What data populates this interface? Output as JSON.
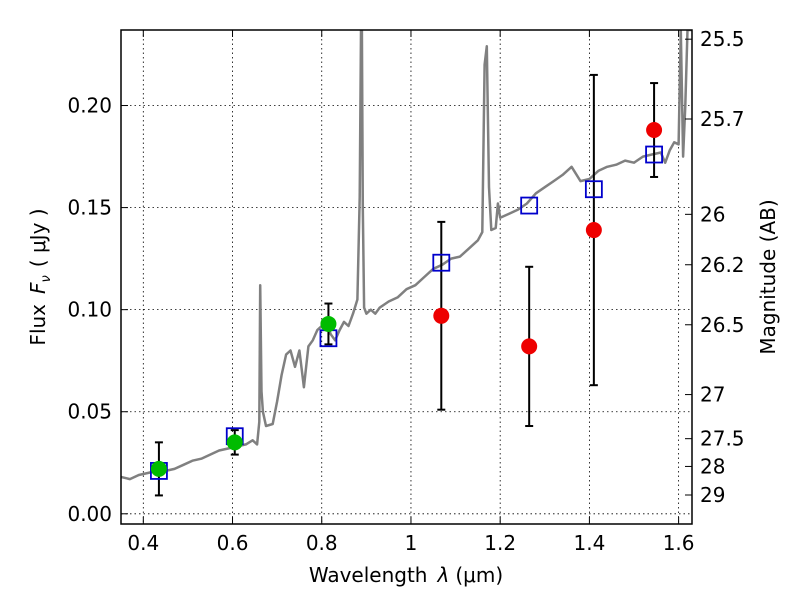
{
  "chart_data": {
    "type": "scatter",
    "xlabel": "Wavelength",
    "xlabel_symbol": "λ",
    "xlabel_unit": "(μm)",
    "ylabel": "Flux",
    "ylabel_symbol": "F",
    "ylabel_subscript": "ν",
    "ylabel_unit": "( μJy )",
    "y2label": "Magnitude (AB)",
    "xlim": [
      0.35,
      1.63
    ],
    "ylim": [
      -0.005,
      0.237
    ],
    "grid": true,
    "x_ticks": [
      0.4,
      0.6,
      0.8,
      1.0,
      1.2,
      1.4,
      1.6
    ],
    "x_tick_labels": [
      "0.4",
      "0.6",
      "0.8",
      "1",
      "1.2",
      "1.4",
      "1.6"
    ],
    "y_ticks": [
      0.0,
      0.05,
      0.1,
      0.15,
      0.2
    ],
    "y_tick_labels": [
      "0.00",
      "0.05",
      "0.10",
      "0.15",
      "0.20"
    ],
    "y2_ticks": [
      {
        "label": "25.5",
        "flux": 0.2325
      },
      {
        "label": "25.7",
        "flux": 0.1934
      },
      {
        "label": "26",
        "flux": 0.1467
      },
      {
        "label": "26.2",
        "flux": 0.122
      },
      {
        "label": "26.5",
        "flux": 0.0926
      },
      {
        "label": "27",
        "flux": 0.0584
      },
      {
        "label": "27.5",
        "flux": 0.0368
      },
      {
        "label": "28",
        "flux": 0.0232
      },
      {
        "label": "29",
        "flux": 0.0092
      }
    ],
    "colors": {
      "model": "#808080",
      "green_points": "#00bb00",
      "red_points": "#ee0000",
      "model_photometry": "#0000cc",
      "error_bars": "#000000"
    },
    "series": [
      {
        "type": "line",
        "x": [
          0.35,
          0.37,
          0.39,
          0.41,
          0.43,
          0.45,
          0.47,
          0.49,
          0.51,
          0.53,
          0.55,
          0.57,
          0.59,
          0.61,
          0.63,
          0.645,
          0.655,
          0.66,
          0.662,
          0.665,
          0.668,
          0.675,
          0.69,
          0.7,
          0.71,
          0.72,
          0.73,
          0.74,
          0.75,
          0.76,
          0.77,
          0.78,
          0.79,
          0.8,
          0.81,
          0.82,
          0.83,
          0.84,
          0.85,
          0.86,
          0.87,
          0.88,
          0.885,
          0.888,
          0.89,
          0.892,
          0.895,
          0.9,
          0.91,
          0.92,
          0.93,
          0.95,
          0.97,
          0.99,
          1.01,
          1.03,
          1.05,
          1.07,
          1.09,
          1.11,
          1.13,
          1.15,
          1.16,
          1.165,
          1.17,
          1.175,
          1.18,
          1.19,
          1.195,
          1.2,
          1.22,
          1.24,
          1.26,
          1.28,
          1.3,
          1.32,
          1.34,
          1.36,
          1.38,
          1.4,
          1.42,
          1.44,
          1.46,
          1.48,
          1.5,
          1.52,
          1.54,
          1.56,
          1.57,
          1.58,
          1.59,
          1.6,
          1.605,
          1.61,
          1.615,
          1.62,
          1.63
        ],
        "y": [
          0.018,
          0.017,
          0.019,
          0.02,
          0.021,
          0.021,
          0.022,
          0.024,
          0.026,
          0.027,
          0.029,
          0.031,
          0.032,
          0.033,
          0.034,
          0.036,
          0.034,
          0.045,
          0.112,
          0.06,
          0.05,
          0.043,
          0.044,
          0.055,
          0.068,
          0.078,
          0.08,
          0.072,
          0.08,
          0.062,
          0.082,
          0.085,
          0.09,
          0.092,
          0.094,
          0.088,
          0.085,
          0.09,
          0.094,
          0.092,
          0.098,
          0.105,
          0.155,
          0.237,
          0.237,
          0.15,
          0.101,
          0.098,
          0.1,
          0.098,
          0.101,
          0.104,
          0.106,
          0.11,
          0.112,
          0.116,
          0.12,
          0.122,
          0.125,
          0.126,
          0.13,
          0.134,
          0.138,
          0.22,
          0.229,
          0.16,
          0.139,
          0.14,
          0.152,
          0.145,
          0.147,
          0.149,
          0.152,
          0.157,
          0.16,
          0.163,
          0.166,
          0.17,
          0.163,
          0.164,
          0.168,
          0.17,
          0.171,
          0.173,
          0.172,
          0.175,
          0.176,
          0.177,
          0.172,
          0.178,
          0.182,
          0.181,
          0.237,
          0.175,
          0.2,
          0.237,
          0.237
        ]
      },
      {
        "type": "scatter",
        "marker": "circle",
        "color": "green",
        "points": [
          {
            "x": 0.435,
            "y": 0.022,
            "err": 0.013
          },
          {
            "x": 0.605,
            "y": 0.035,
            "err": 0.006
          },
          {
            "x": 0.815,
            "y": 0.093,
            "err": 0.01
          }
        ]
      },
      {
        "type": "scatter",
        "marker": "circle",
        "color": "red",
        "points": [
          {
            "x": 1.068,
            "y": 0.097,
            "err": 0.046
          },
          {
            "x": 1.265,
            "y": 0.082,
            "err": 0.039
          },
          {
            "x": 1.41,
            "y": 0.139,
            "err": 0.076
          },
          {
            "x": 1.545,
            "y": 0.188,
            "err": 0.023
          }
        ]
      },
      {
        "type": "scatter",
        "marker": "open-square",
        "color": "blue",
        "points": [
          {
            "x": 0.435,
            "y": 0.021
          },
          {
            "x": 0.605,
            "y": 0.038
          },
          {
            "x": 0.815,
            "y": 0.086
          },
          {
            "x": 1.068,
            "y": 0.123
          },
          {
            "x": 1.265,
            "y": 0.151
          },
          {
            "x": 1.41,
            "y": 0.159
          },
          {
            "x": 1.545,
            "y": 0.176
          }
        ]
      }
    ]
  }
}
